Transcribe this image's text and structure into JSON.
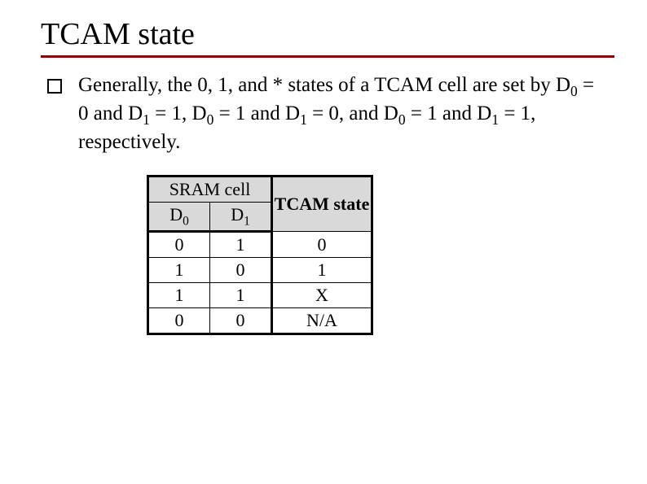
{
  "title": "TCAM state",
  "body": {
    "prefix": "Generally, the 0, 1, and * states of a TCAM cell are set by D",
    "seg1": " = 0 and D",
    "seg2": " = 1, D",
    "seg3": " = 1 and D",
    "seg4": " = 0, and D",
    "seg5": " = 1 and D",
    "seg6": " = 1, respectively.",
    "sub0": "0",
    "sub1": "1"
  },
  "table": {
    "header_sram": "SRAM cell",
    "header_state": "TCAM state",
    "d0_label": "D",
    "d0_sub": "0",
    "d1_label": "D",
    "d1_sub": "1",
    "rows": [
      {
        "d0": "0",
        "d1": "1",
        "state": "0"
      },
      {
        "d0": "1",
        "d1": "0",
        "state": "1"
      },
      {
        "d0": "1",
        "d1": "1",
        "state": "X"
      },
      {
        "d0": "0",
        "d1": "0",
        "state": "N/A"
      }
    ]
  },
  "colors": {
    "rule": "#800000",
    "table_header_bg": "#d9d9d9",
    "text": "#000000",
    "background": "#ffffff"
  }
}
